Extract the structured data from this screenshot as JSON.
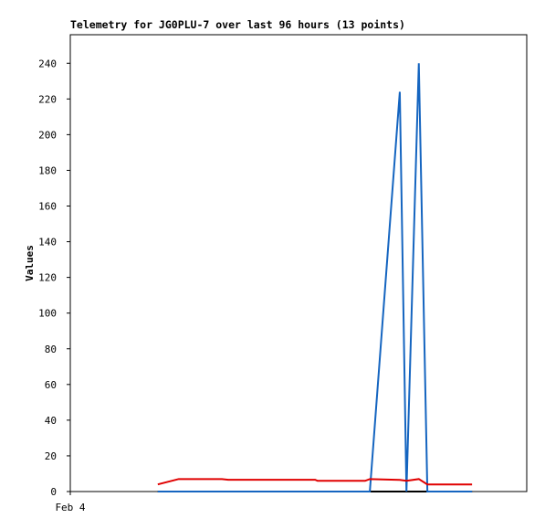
{
  "chart_data": {
    "type": "line",
    "title": "Telemetry for JG0PLU-7 over last 96 hours (13 points)",
    "y_label": "Values",
    "x": [
      18.4,
      22.8,
      31.9,
      33.2,
      51.5,
      52.0,
      62.0,
      63.0,
      69.3,
      70.7,
      73.3,
      75.1,
      84.5
    ],
    "series": [
      {
        "color": "#000000",
        "values": [
          0,
          0,
          0,
          0,
          0,
          0,
          0,
          0,
          0,
          0,
          0,
          0,
          0
        ]
      },
      {
        "color": "#1565c0",
        "values": [
          0,
          0,
          0,
          0,
          0,
          0,
          0,
          0,
          224,
          0,
          240,
          0,
          0
        ]
      },
      {
        "color": "#e00000",
        "values": [
          4,
          7,
          7,
          6.6,
          6.6,
          6,
          6,
          7,
          6.5,
          6,
          7,
          4,
          4
        ]
      }
    ],
    "xlim": [
      0,
      96
    ],
    "xticks": [
      {
        "value": 0,
        "label": "Feb 4"
      }
    ],
    "ylim": [
      0,
      256
    ],
    "yticks": [
      0,
      20,
      40,
      60,
      80,
      100,
      120,
      140,
      160,
      180,
      200,
      220,
      240
    ]
  }
}
